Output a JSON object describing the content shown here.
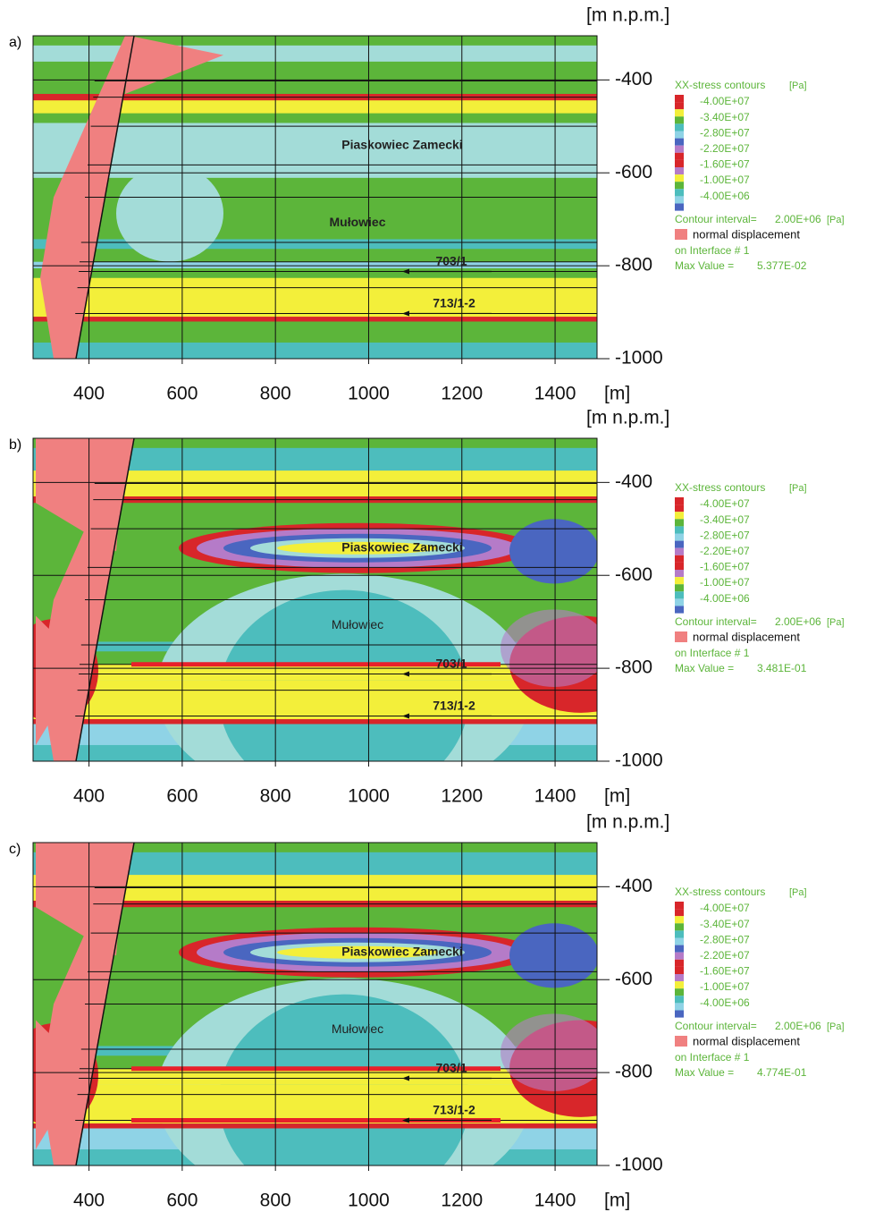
{
  "chart_data": [
    {
      "type": "contour",
      "panel_label": "a)",
      "x_label": "[m]",
      "y_label": "[m n.p.m.]",
      "xlim": [
        280,
        1490
      ],
      "ylim": [
        -1000,
        -305
      ],
      "xticks": [
        400,
        600,
        800,
        1000,
        1200,
        1400
      ],
      "yticks": [
        -400,
        -600,
        -800,
        -1000
      ],
      "grid": true,
      "legend": {
        "title": "XX-stress contours",
        "unit": "[Pa]",
        "labels": [
          "-4.00E+07",
          "-3.40E+07",
          "-2.80E+07",
          "-2.20E+07",
          "-1.60E+07",
          "-1.00E+07",
          "-4.00E+06"
        ],
        "interval_label": "Contour interval=",
        "interval": "2.00E+06",
        "interval_unit": "[Pa]",
        "displacement": "normal displacement",
        "interface": "on Interface # 1",
        "max_label": "Max Value =",
        "max_value": "5.377E-02"
      },
      "annotations": [
        "Piaskowiec Zamecki",
        "Mułowiec",
        "703/1",
        "713/1-2"
      ]
    },
    {
      "type": "contour",
      "panel_label": "b)",
      "x_label": "[m]",
      "y_label": "[m n.p.m.]",
      "xlim": [
        280,
        1490
      ],
      "ylim": [
        -1000,
        -305
      ],
      "xticks": [
        400,
        600,
        800,
        1000,
        1200,
        1400
      ],
      "yticks": [
        -400,
        -600,
        -800,
        -1000
      ],
      "grid": true,
      "legend": {
        "title": "XX-stress contours",
        "unit": "[Pa]",
        "labels": [
          "-4.00E+07",
          "-3.40E+07",
          "-2.80E+07",
          "-2.20E+07",
          "-1.60E+07",
          "-1.00E+07",
          "-4.00E+06"
        ],
        "interval_label": "Contour interval=",
        "interval": "2.00E+06",
        "interval_unit": "[Pa]",
        "displacement": "normal displacement",
        "interface": "on Interface # 1",
        "max_label": "Max Value =",
        "max_value": "3.481E-01"
      },
      "annotations": [
        "Piaskowiec Zamecki",
        "Mułowiec",
        "703/1",
        "713/1-2"
      ]
    },
    {
      "type": "contour",
      "panel_label": "c)",
      "x_label": "[m]",
      "y_label": "[m n.p.m.]",
      "xlim": [
        280,
        1490
      ],
      "ylim": [
        -1000,
        -305
      ],
      "xticks": [
        400,
        600,
        800,
        1000,
        1200,
        1400
      ],
      "yticks": [
        -400,
        -600,
        -800,
        -1000
      ],
      "grid": true,
      "legend": {
        "title": "XX-stress contours",
        "unit": "[Pa]",
        "labels": [
          "-4.00E+07",
          "-3.40E+07",
          "-2.80E+07",
          "-2.20E+07",
          "-1.60E+07",
          "-1.00E+07",
          "-4.00E+06"
        ],
        "interval_label": "Contour interval=",
        "interval": "2.00E+06",
        "interval_unit": "[Pa]",
        "displacement": "normal displacement",
        "interface": "on Interface # 1",
        "max_label": "Max Value =",
        "max_value": "4.774E-01"
      },
      "annotations": [
        "Piaskowiec Zamecki",
        "Mułowiec",
        "703/1",
        "713/1-2"
      ]
    }
  ]
}
